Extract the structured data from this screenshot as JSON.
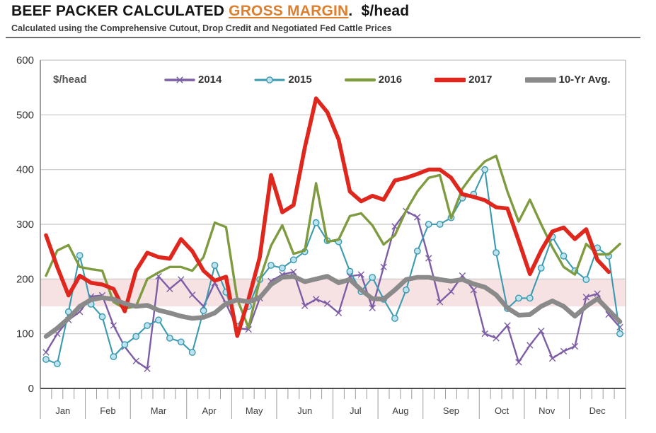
{
  "title": {
    "prefix": "BEEF PACKER CALCULATED ",
    "highlight": "GROSS MARGIN",
    "suffix": ".  $/head"
  },
  "subtitle": "Calculated using the Comprehensive Cutout, Drop Credit and Negotiated Fed Cattle Prices",
  "unit_label": "$/head",
  "legend": {
    "items": [
      {
        "label": "2014",
        "series_index": 0
      },
      {
        "label": "2015",
        "series_index": 1
      },
      {
        "label": "2016",
        "series_index": 2
      },
      {
        "label": "2017",
        "series_index": 3
      },
      {
        "label": "10-Yr Avg.",
        "series_index": 4
      }
    ]
  },
  "colors": {
    "accent_orange": "#dc7f2e",
    "band_pink": "#f6e2e2",
    "grid": "#c6c6c6",
    "axis_dark": "#4d4d4d"
  },
  "chart_data": {
    "type": "line",
    "title": "BEEF PACKER CALCULATED GROSS MARGIN, $/head",
    "xlabel": "",
    "ylabel": "$/head",
    "x_unit": "week-of-year",
    "weeks": 52,
    "months": [
      "Jan",
      "Feb",
      "Mar",
      "Apr",
      "May",
      "Jun",
      "Jul",
      "Aug",
      "Sep",
      "Oct",
      "Nov",
      "Dec"
    ],
    "month_weeks": [
      4,
      4,
      5,
      4,
      4,
      5,
      4,
      4,
      5,
      4,
      4,
      5
    ],
    "ylim": [
      0,
      600
    ],
    "ytick_step": 100,
    "yticks": [
      0,
      100,
      200,
      300,
      400,
      500,
      600
    ],
    "grid": "horizontal",
    "legend_position": "top-inside",
    "band": {
      "low": 150,
      "high": 200,
      "color": "#f6e2e2"
    },
    "series": [
      {
        "name": "2014",
        "color": "#7d5ea6",
        "line_width": 2.4,
        "marker": "x",
        "values": [
          66,
          100,
          125,
          140,
          168,
          170,
          115,
          76,
          50,
          36,
          205,
          182,
          199,
          171,
          150,
          193,
          155,
          110,
          108,
          165,
          196,
          208,
          213,
          151,
          163,
          155,
          138,
          205,
          208,
          147,
          222,
          296,
          324,
          313,
          238,
          158,
          177,
          206,
          180,
          100,
          92,
          115,
          48,
          79,
          105,
          55,
          68,
          77,
          167,
          173,
          135,
          112
        ]
      },
      {
        "name": "2015",
        "color": "#3a9ab0",
        "line_width": 2.1,
        "marker": "circle",
        "marker_fill": "#bee3ee",
        "values": [
          53,
          45,
          140,
          243,
          154,
          131,
          58,
          80,
          95,
          115,
          125,
          92,
          85,
          66,
          142,
          225,
          176,
          113,
          150,
          199,
          225,
          220,
          235,
          250,
          303,
          270,
          268,
          214,
          177,
          203,
          163,
          128,
          180,
          251,
          300,
          300,
          312,
          348,
          355,
          400,
          248,
          146,
          165,
          165,
          220,
          277,
          242,
          215,
          199,
          257,
          242,
          100
        ]
      },
      {
        "name": "2016",
        "color": "#7e9b40",
        "line_width": 3.4,
        "marker": "none",
        "values": [
          206,
          252,
          262,
          222,
          218,
          215,
          158,
          146,
          150,
          200,
          212,
          222,
          222,
          215,
          240,
          303,
          295,
          163,
          111,
          199,
          261,
          298,
          246,
          252,
          375,
          268,
          272,
          315,
          320,
          298,
          263,
          280,
          325,
          360,
          385,
          390,
          311,
          365,
          393,
          415,
          425,
          360,
          305,
          345,
          300,
          258,
          222,
          208,
          264,
          245,
          245,
          264
        ]
      },
      {
        "name": "2017",
        "color": "#e0271d",
        "line_width": 5.6,
        "marker": "none",
        "values": [
          280,
          222,
          170,
          206,
          193,
          190,
          182,
          141,
          215,
          248,
          240,
          237,
          273,
          251,
          215,
          197,
          204,
          96,
          163,
          240,
          390,
          322,
          335,
          440,
          530,
          505,
          455,
          360,
          342,
          352,
          345,
          380,
          385,
          392,
          400,
          400,
          385,
          355,
          350,
          344,
          331,
          329,
          270,
          209,
          252,
          287,
          294,
          273,
          291,
          235,
          213,
          null
        ]
      },
      {
        "name": "10-Yr Avg.",
        "color": "#8a8a8a",
        "line_width": 6.6,
        "marker": "none",
        "values": [
          95,
          110,
          128,
          150,
          162,
          166,
          163,
          155,
          150,
          152,
          143,
          138,
          132,
          128,
          130,
          138,
          155,
          162,
          158,
          166,
          190,
          203,
          205,
          195,
          200,
          205,
          193,
          199,
          180,
          164,
          163,
          180,
          199,
          203,
          203,
          199,
          196,
          199,
          191,
          185,
          171,
          147,
          134,
          135,
          150,
          160,
          150,
          132,
          150,
          164,
          143,
          122
        ]
      }
    ]
  }
}
